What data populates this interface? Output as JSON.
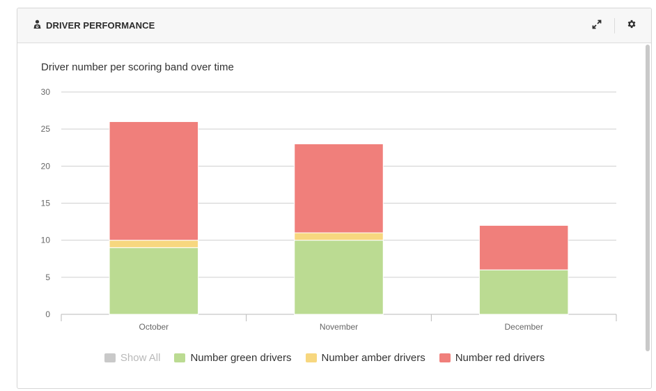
{
  "panel": {
    "title": "DRIVER PERFORMANCE",
    "icons": {
      "title": "driver-icon",
      "expand": "expand-icon",
      "settings": "gear-icon"
    }
  },
  "legend": {
    "show_all": {
      "label": "Show All",
      "color": "#c9c9c9"
    },
    "items": [
      {
        "label": "Number green drivers",
        "color": "#bbdb92"
      },
      {
        "label": "Number amber drivers",
        "color": "#f7d77f"
      },
      {
        "label": "Number red drivers",
        "color": "#f07f7b"
      }
    ]
  },
  "chart_data": {
    "type": "bar",
    "stacked": true,
    "title": "Driver number per scoring band over time",
    "categories": [
      "October",
      "November",
      "December"
    ],
    "series": [
      {
        "name": "Number green drivers",
        "color": "#bbdb92",
        "values": [
          9,
          10,
          6
        ]
      },
      {
        "name": "Number amber drivers",
        "color": "#f7d77f",
        "values": [
          1,
          1,
          0
        ]
      },
      {
        "name": "Number red drivers",
        "color": "#f07f7b",
        "values": [
          16,
          12,
          6
        ]
      }
    ],
    "yticks": [
      0,
      5,
      10,
      15,
      20,
      25,
      30
    ],
    "ylim": [
      0,
      30
    ],
    "grid": true
  }
}
